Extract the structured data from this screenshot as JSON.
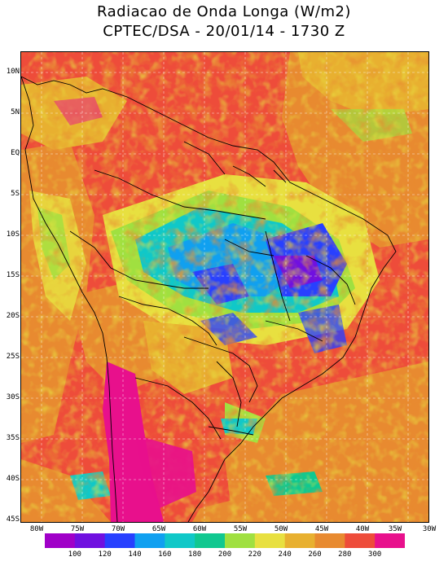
{
  "title": {
    "line1": "Radiacao de Onda Longa (W/m2)",
    "line2": "CPTEC/DSA - 20/01/14 - 1730 Z"
  },
  "map": {
    "lat_labels": [
      "10N",
      "5N",
      "EQ",
      "5S",
      "10S",
      "15S",
      "20S",
      "25S",
      "30S",
      "35S",
      "40S",
      "45S"
    ],
    "lon_labels": [
      "80W",
      "75W",
      "70W",
      "65W",
      "60W",
      "55W",
      "50W",
      "45W",
      "40W",
      "35W",
      "30W"
    ],
    "lat_range": [
      10,
      -45
    ],
    "lon_range": [
      -80,
      -30
    ],
    "grid": "dashed"
  },
  "colorbar": {
    "colors": [
      "#a000c8",
      "#7010e0",
      "#2840ff",
      "#10a0f0",
      "#10c8c8",
      "#10c890",
      "#a0e040",
      "#e8e040",
      "#e8b030",
      "#e88a30",
      "#ee4c3a",
      "#e8108c"
    ],
    "labels": [
      "100",
      "120",
      "140",
      "160",
      "180",
      "200",
      "220",
      "240",
      "260",
      "280",
      "300"
    ]
  }
}
